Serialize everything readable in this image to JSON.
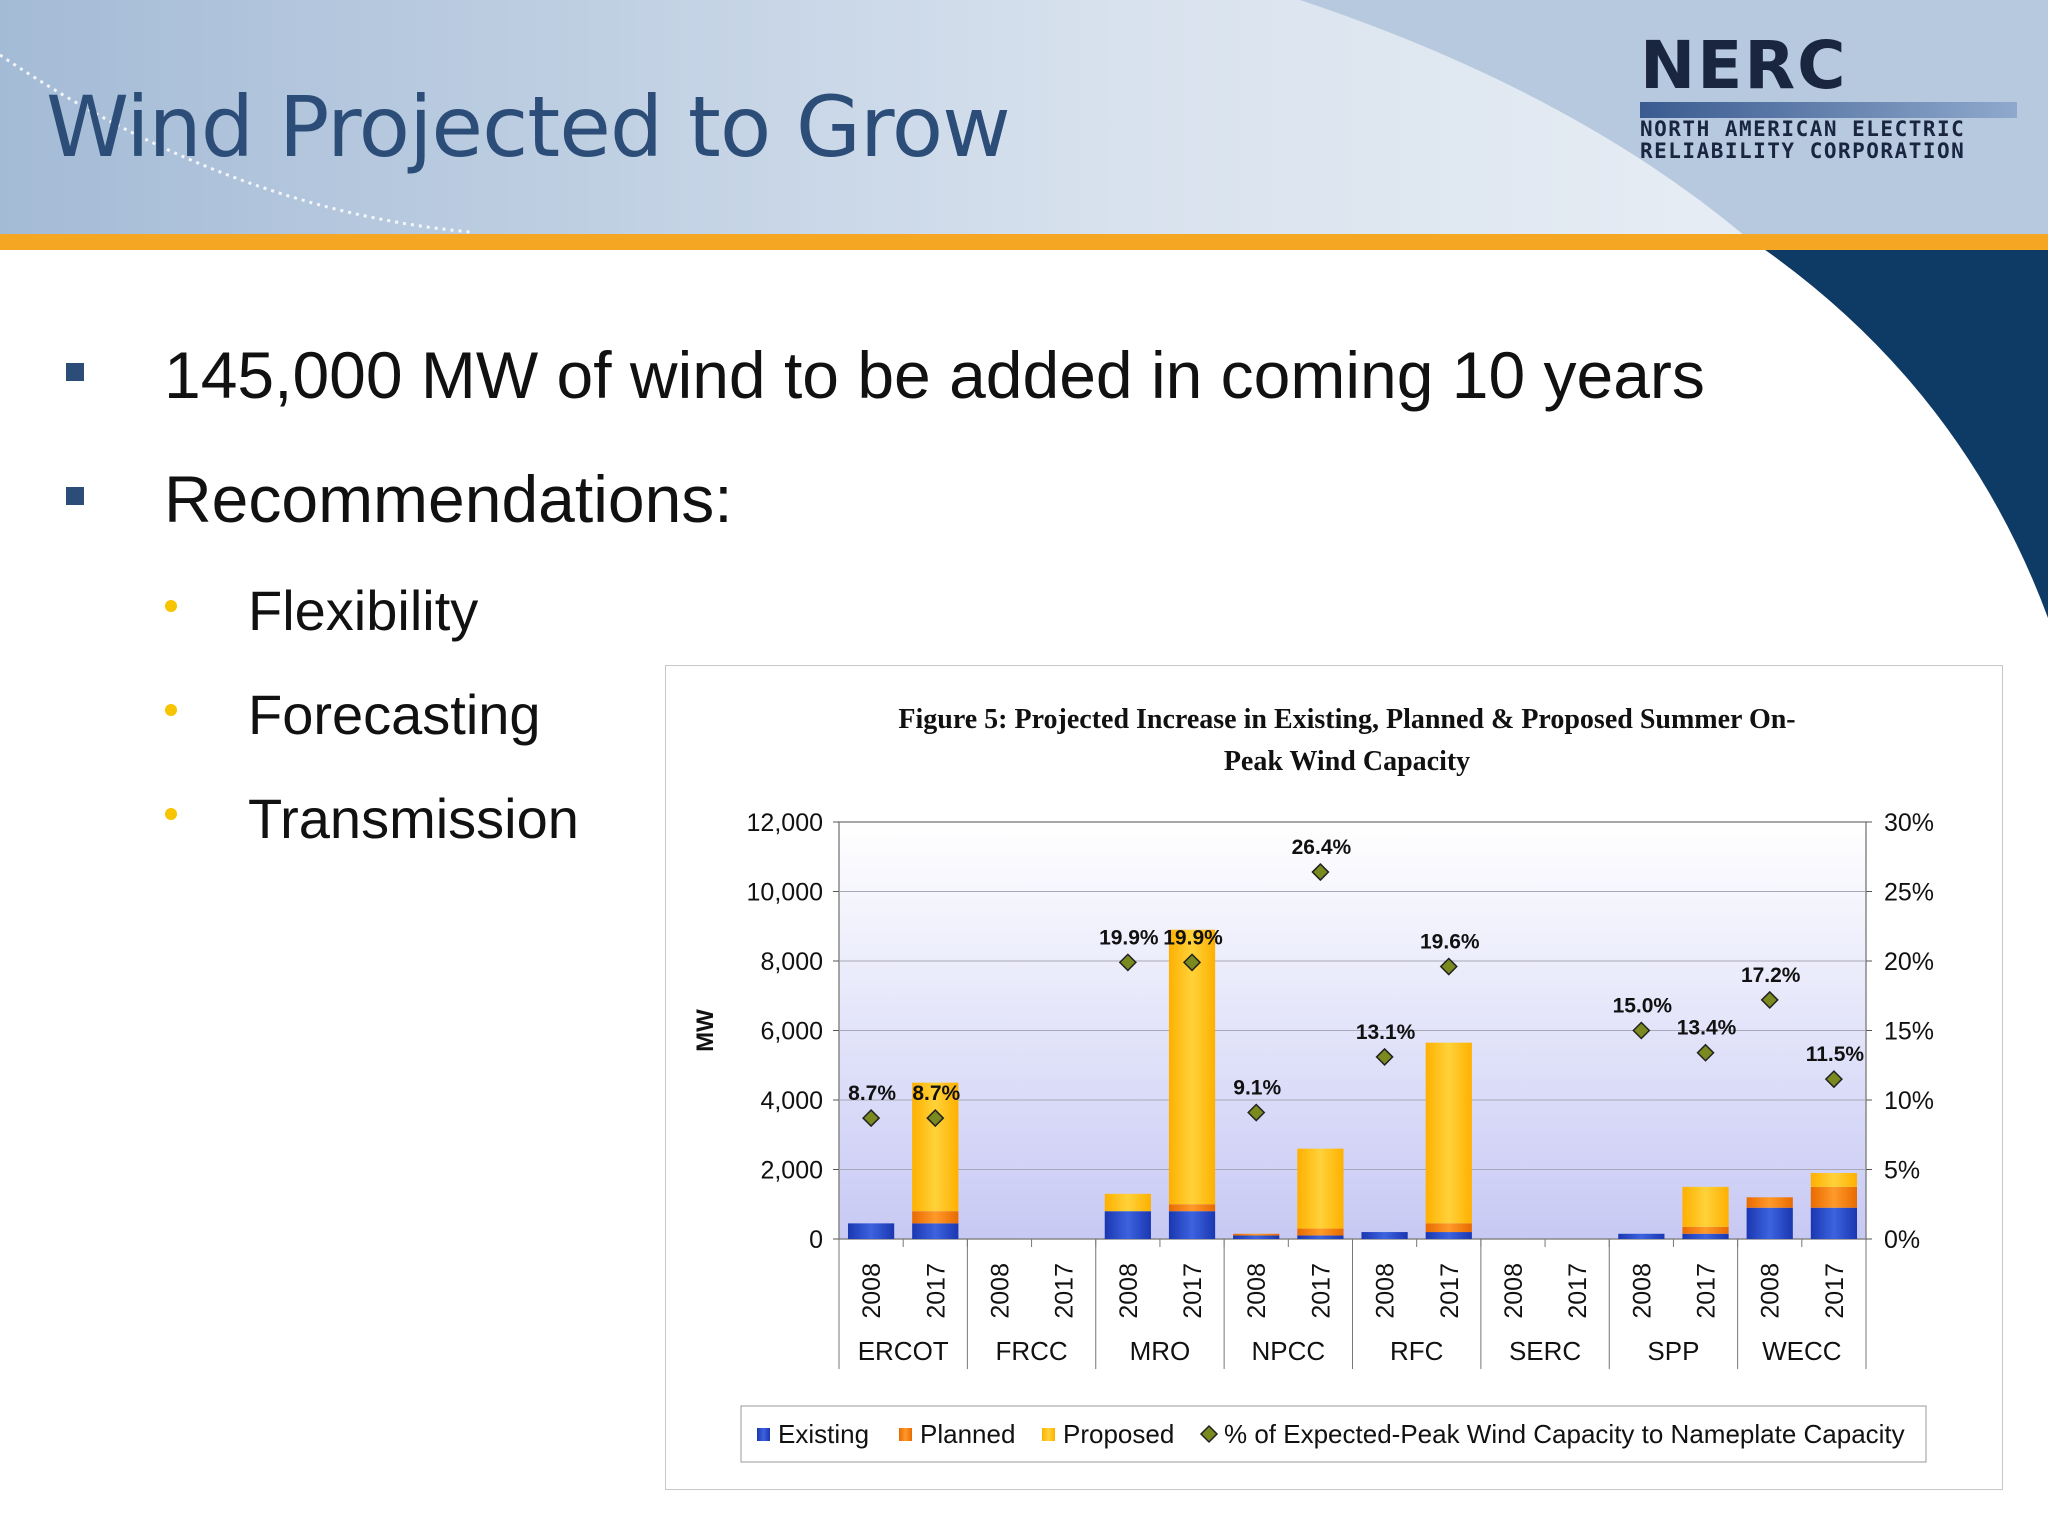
{
  "slide": {
    "title": "Wind Projected to Grow",
    "logo": {
      "name": "NERC",
      "line1": "NORTH AMERICAN ELECTRIC",
      "line2": "RELIABILITY CORPORATION"
    },
    "bullets": [
      "145,000 MW of wind to be added in coming 10 years",
      "Recommendations:"
    ],
    "sub_bullets": [
      "Flexibility",
      "Forecasting",
      "Transmission"
    ],
    "colors": {
      "title": "#2b4d78",
      "accent_orange": "#f5a623",
      "navy": "#0e3a66",
      "existing": "#2346c8",
      "planned": "#f07a10",
      "proposed": "#ffc20e",
      "marker": "#7a8a1e"
    }
  },
  "chart_data": {
    "type": "bar",
    "stacked": true,
    "title": "Figure 5: Projected Increase in Existing, Planned & Proposed Summer On-Peak Wind Capacity",
    "title_lines": [
      "Figure 5: Projected Increase in Existing, Planned & Proposed Summer On-",
      "Peak Wind Capacity"
    ],
    "ylabel": "MW",
    "ylim": [
      0,
      12000
    ],
    "y_ticks": [
      "0",
      "2,000",
      "4,000",
      "6,000",
      "8,000",
      "10,000",
      "12,000"
    ],
    "y2lim": [
      0,
      30
    ],
    "y2_ticks": [
      "0%",
      "5%",
      "10%",
      "15%",
      "20%",
      "25%",
      "30%"
    ],
    "groups": [
      "ERCOT",
      "FRCC",
      "MRO",
      "NPCC",
      "RFC",
      "SERC",
      "SPP",
      "WECC"
    ],
    "years": [
      "2008",
      "2017"
    ],
    "series": [
      {
        "name": "Existing",
        "values": [
          450,
          450,
          0,
          0,
          800,
          800,
          100,
          100,
          200,
          200,
          0,
          0,
          150,
          150,
          900,
          900
        ]
      },
      {
        "name": "Planned",
        "values": [
          0,
          350,
          0,
          0,
          0,
          200,
          50,
          200,
          0,
          250,
          0,
          0,
          0,
          200,
          300,
          600
        ]
      },
      {
        "name": "Proposed",
        "values": [
          0,
          3700,
          0,
          0,
          500,
          7900,
          0,
          2300,
          0,
          5200,
          0,
          0,
          0,
          1150,
          0,
          400
        ]
      }
    ],
    "line_series": {
      "name": "% of Expected-Peak Wind Capacity to Nameplate Capacity",
      "values": [
        8.7,
        8.7,
        null,
        null,
        19.9,
        19.9,
        9.1,
        26.4,
        13.1,
        19.6,
        null,
        null,
        15.0,
        13.4,
        17.2,
        11.5
      ],
      "labels": [
        "8.7%",
        "8.7%",
        "",
        "",
        "19.9%",
        "19.9%",
        "9.1%",
        "26.4%",
        "13.1%",
        "19.6%",
        "",
        "",
        "15.0%",
        "13.4%",
        "17.2%",
        "11.5%"
      ]
    },
    "legend": [
      "Existing",
      "Planned",
      "Proposed",
      "% of Expected-Peak Wind Capacity to Nameplate Capacity"
    ],
    "legend_position": "bottom",
    "grid": true
  }
}
